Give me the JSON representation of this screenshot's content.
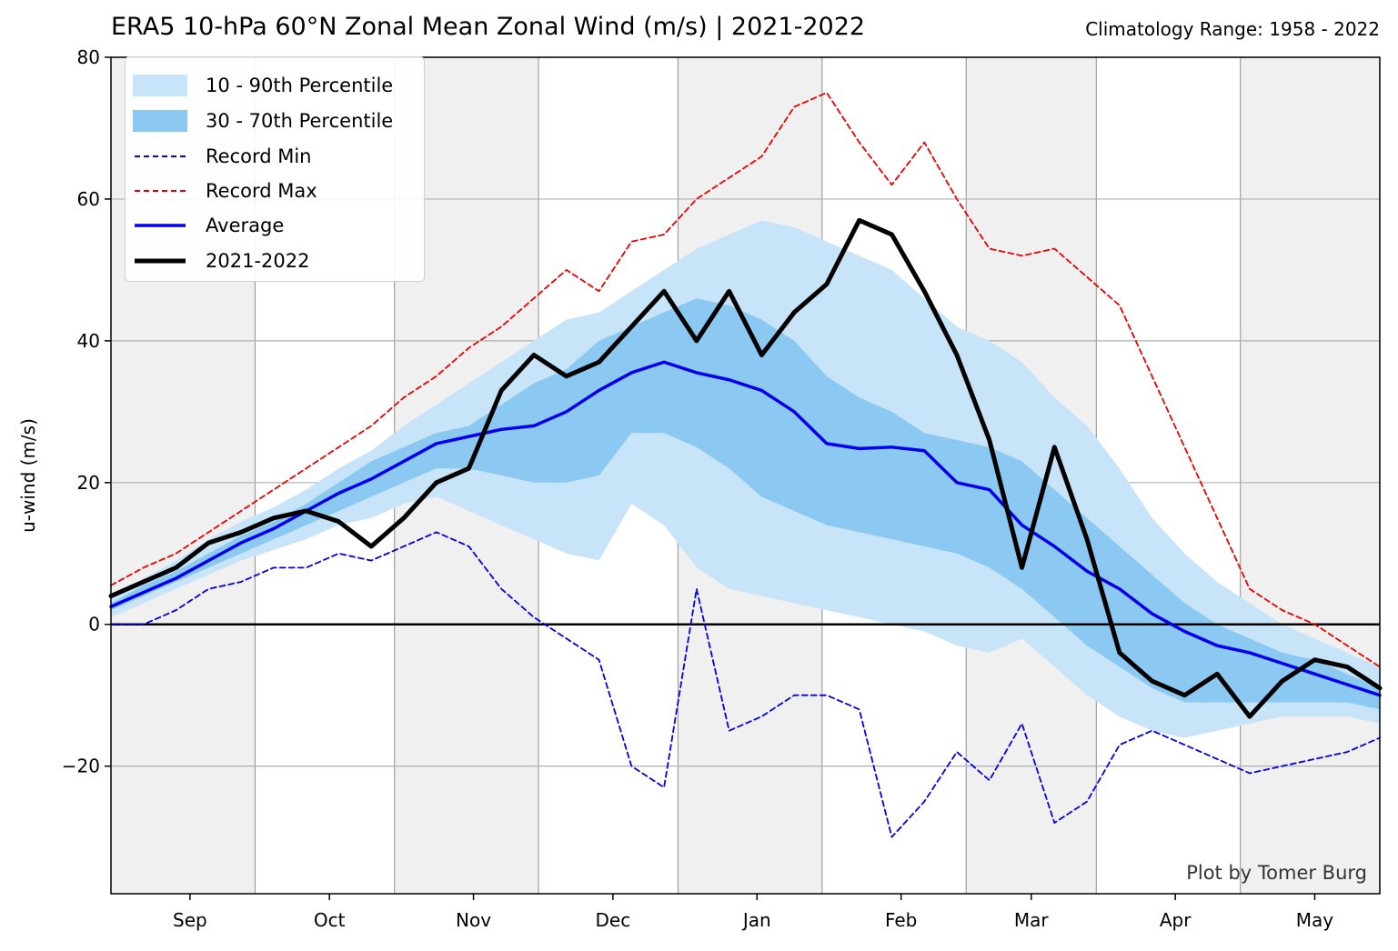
{
  "title": "ERA5 10-hPa 60°N Zonal Mean Zonal Wind (m/s) | 2021-2022",
  "subtitle": "Climatology Range: 1958 - 2022",
  "credit": "Plot by Tomer Burg",
  "colors": {
    "band_outer": "#c8e4f8",
    "band_inner": "#8bc8f2",
    "record_min": "#0000ee",
    "record_max": "#ee0000",
    "average": "#0000ee",
    "current": "#000000",
    "shade": "#f0f0f0",
    "grid": "#b0b0b0"
  },
  "legend": [
    {
      "key": "p10_90",
      "label": "10 - 90th Percentile",
      "style": "fill-outer"
    },
    {
      "key": "p30_70",
      "label": "30 - 70th Percentile",
      "style": "fill-inner"
    },
    {
      "key": "record_min",
      "label": "Record Min",
      "style": "dash-blue"
    },
    {
      "key": "record_max",
      "label": "Record Max",
      "style": "dash-red"
    },
    {
      "key": "average",
      "label": "Average",
      "style": "line-blue"
    },
    {
      "key": "current",
      "label": "2021-2022",
      "style": "line-black"
    }
  ],
  "chart_data": {
    "type": "line",
    "title": "ERA5 10-hPa 60°N Zonal Mean Zonal Wind (m/s) | 2021-2022",
    "xlabel": "",
    "ylabel": "u-wind (m/s)",
    "xlim": [
      "2021-08-15",
      "2022-05-15"
    ],
    "ylim": [
      -38,
      80
    ],
    "yticks": [
      -20,
      0,
      20,
      40,
      60,
      80
    ],
    "xticks": [
      {
        "date": "2021-09-01",
        "label": "Sep"
      },
      {
        "date": "2021-10-01",
        "label": "Oct"
      },
      {
        "date": "2021-11-01",
        "label": "Nov"
      },
      {
        "date": "2021-12-01",
        "label": "Dec"
      },
      {
        "date": "2022-01-01",
        "label": "Jan"
      },
      {
        "date": "2022-02-01",
        "label": "Feb"
      },
      {
        "date": "2022-03-01",
        "label": "Mar"
      },
      {
        "date": "2022-04-01",
        "label": "Apr"
      },
      {
        "date": "2022-05-01",
        "label": "May"
      }
    ],
    "grid": true,
    "legend_position": "upper-left",
    "shaded_periods": [
      [
        "2021-08-15",
        "2021-09-15"
      ],
      [
        "2021-10-15",
        "2021-11-15"
      ],
      [
        "2021-12-15",
        "2022-01-15"
      ],
      [
        "2022-02-15",
        "2022-03-15"
      ],
      [
        "2022-04-15",
        "2022-05-15"
      ]
    ],
    "x": [
      "2021-08-15",
      "2021-08-22",
      "2021-08-29",
      "2021-09-05",
      "2021-09-12",
      "2021-09-19",
      "2021-09-26",
      "2021-10-03",
      "2021-10-10",
      "2021-10-17",
      "2021-10-24",
      "2021-10-31",
      "2021-11-07",
      "2021-11-14",
      "2021-11-21",
      "2021-11-28",
      "2021-12-05",
      "2021-12-12",
      "2021-12-19",
      "2021-12-26",
      "2022-01-02",
      "2022-01-09",
      "2022-01-16",
      "2022-01-23",
      "2022-01-30",
      "2022-02-06",
      "2022-02-13",
      "2022-02-20",
      "2022-02-27",
      "2022-03-06",
      "2022-03-13",
      "2022-03-20",
      "2022-03-27",
      "2022-04-03",
      "2022-04-10",
      "2022-04-17",
      "2022-04-24",
      "2022-05-01",
      "2022-05-08",
      "2022-05-15"
    ],
    "series": [
      {
        "name": "10 - 90th Percentile",
        "key": "p90",
        "values": [
          4,
          6.5,
          9,
          12,
          14.5,
          16.5,
          19,
          22,
          24.5,
          28,
          31,
          34,
          37,
          40,
          43,
          44,
          47,
          50,
          53,
          55,
          57,
          56,
          54,
          52,
          50,
          46,
          42,
          40,
          37,
          32,
          28,
          22,
          15,
          10,
          6,
          3,
          0,
          -2,
          -4,
          -6
        ]
      },
      {
        "name": "10 - 90th Percentile",
        "key": "p10",
        "values": [
          1,
          3,
          5,
          7,
          9,
          10.5,
          12,
          14,
          15,
          17,
          18,
          16,
          14,
          12,
          10,
          9,
          17,
          14,
          8,
          5,
          4,
          3,
          2,
          1,
          0,
          -1,
          -3,
          -4,
          -2,
          -6,
          -10,
          -13,
          -15,
          -16,
          -15,
          -14,
          -13,
          -13,
          -13,
          -14
        ]
      },
      {
        "name": "30 - 70th Percentile",
        "key": "p70",
        "values": [
          3,
          5.5,
          7.5,
          10,
          12.5,
          14.5,
          17,
          20,
          23,
          25,
          27,
          28,
          31,
          34,
          36,
          40,
          42,
          44,
          46,
          45,
          43,
          40,
          35,
          32,
          30,
          27,
          26,
          25,
          23,
          19,
          15,
          11,
          7,
          3,
          0,
          -2,
          -4,
          -5,
          -7,
          -9
        ]
      },
      {
        "name": "30 - 70th Percentile",
        "key": "p30",
        "values": [
          2,
          4,
          6,
          8,
          10,
          12,
          14,
          16,
          18,
          20,
          22,
          22,
          21,
          20,
          20,
          21,
          27,
          27,
          25,
          22,
          18,
          16,
          14,
          13,
          12,
          11,
          10,
          8,
          5,
          1,
          -3,
          -6,
          -9,
          -11,
          -11,
          -11,
          -11,
          -11,
          -11,
          -12
        ]
      },
      {
        "name": "Record Min",
        "key": "record_min",
        "values": [
          0,
          0,
          2,
          5,
          6,
          8,
          8,
          10,
          9,
          11,
          13,
          11,
          5,
          1,
          -2,
          -5,
          -20,
          -23,
          5,
          -15,
          -13,
          -10,
          -10,
          -12,
          -30,
          -25,
          -18,
          -22,
          -14,
          -28,
          -25,
          -17,
          -15,
          -17,
          -19,
          -21,
          -20,
          -19,
          -18,
          -16
        ]
      },
      {
        "name": "Record Max",
        "key": "record_max",
        "values": [
          5.5,
          8,
          10,
          13,
          16,
          19,
          22,
          25,
          28,
          32,
          35,
          39,
          42,
          46,
          50,
          47,
          54,
          55,
          60,
          63,
          66,
          73,
          75,
          68,
          62,
          68,
          60,
          53,
          52,
          53,
          49,
          45,
          35,
          25,
          15,
          5,
          2,
          0,
          -3,
          -6
        ]
      },
      {
        "name": "Average",
        "key": "average",
        "values": [
          2.5,
          4.5,
          6.5,
          9,
          11.5,
          13.5,
          16,
          18.5,
          20.5,
          23,
          25.5,
          26.5,
          27.5,
          28,
          30,
          33,
          35.5,
          37,
          35.5,
          34.5,
          33,
          30,
          25.5,
          24.8,
          25,
          24.5,
          20,
          19,
          14,
          11,
          7.5,
          5,
          1.5,
          -1,
          -3,
          -4,
          -5.5,
          -7,
          -8.5,
          -10
        ]
      },
      {
        "name": "2021-2022",
        "key": "current",
        "values": [
          4,
          6,
          8,
          11.5,
          13,
          15,
          16,
          14.5,
          11,
          15,
          20,
          22,
          33,
          38,
          35,
          37,
          42,
          47,
          40,
          47,
          38,
          44,
          48,
          57,
          55,
          47,
          38,
          26,
          8,
          25,
          12,
          -4,
          -8,
          -10,
          -7,
          -13,
          -8,
          -5,
          -6,
          -9
        ]
      }
    ]
  }
}
